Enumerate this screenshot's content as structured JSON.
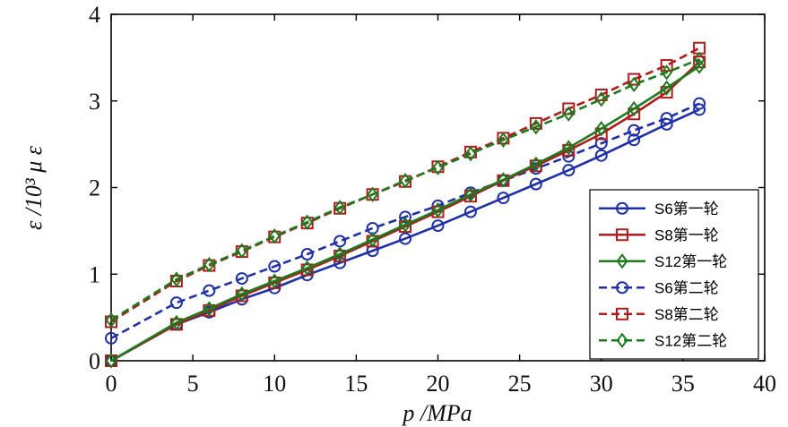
{
  "chart_data": {
    "type": "line",
    "xlabel": "p /MPa",
    "ylabel": "ε /10³ μ ε",
    "xlim": [
      0,
      40
    ],
    "ylim": [
      0,
      4
    ],
    "xticks": [
      "0",
      "5",
      "10",
      "15",
      "20",
      "25",
      "30",
      "35",
      "40"
    ],
    "yticks": [
      "0",
      "1",
      "2",
      "3",
      "4"
    ],
    "grid": false,
    "legend_position": "bottom-right",
    "x": [
      0,
      4,
      6,
      8,
      10,
      12,
      14,
      16,
      18,
      20,
      22,
      24,
      26,
      28,
      30,
      32,
      34,
      36
    ],
    "series": [
      {
        "name": "S6第一轮",
        "color": "#1f2fa8",
        "marker": "circle",
        "line": "solid",
        "values": [
          0,
          0.42,
          0.56,
          0.71,
          0.84,
          0.99,
          1.13,
          1.27,
          1.41,
          1.56,
          1.72,
          1.88,
          2.04,
          2.2,
          2.37,
          2.55,
          2.73,
          2.9
        ]
      },
      {
        "name": "S8第一轮",
        "color": "#b01c1c",
        "marker": "square",
        "line": "solid",
        "values": [
          0,
          0.42,
          0.58,
          0.75,
          0.9,
          1.05,
          1.21,
          1.38,
          1.55,
          1.72,
          1.9,
          2.08,
          2.25,
          2.43,
          2.62,
          2.85,
          3.1,
          3.45
        ]
      },
      {
        "name": "S12第一轮",
        "color": "#1e7a1e",
        "marker": "diamond",
        "line": "solid",
        "values": [
          0,
          0.44,
          0.6,
          0.77,
          0.92,
          1.07,
          1.23,
          1.4,
          1.57,
          1.74,
          1.92,
          2.09,
          2.27,
          2.46,
          2.68,
          2.91,
          3.15,
          3.4
        ]
      },
      {
        "name": "S6第二轮",
        "color": "#1f2fa8",
        "marker": "circle",
        "line": "dashed",
        "values": [
          0.26,
          0.67,
          0.81,
          0.95,
          1.09,
          1.23,
          1.38,
          1.53,
          1.66,
          1.79,
          1.94,
          2.08,
          2.22,
          2.36,
          2.51,
          2.66,
          2.8,
          2.97
        ]
      },
      {
        "name": "S8第二轮",
        "color": "#b01c1c",
        "marker": "square",
        "line": "dashed",
        "values": [
          0.45,
          0.92,
          1.1,
          1.26,
          1.43,
          1.59,
          1.76,
          1.92,
          2.07,
          2.24,
          2.41,
          2.57,
          2.74,
          2.91,
          3.07,
          3.25,
          3.41,
          3.61
        ]
      },
      {
        "name": "S12第二轮",
        "color": "#1e7a1e",
        "marker": "diamond",
        "line": "dashed",
        "values": [
          0.47,
          0.94,
          1.11,
          1.27,
          1.44,
          1.6,
          1.77,
          1.92,
          2.08,
          2.23,
          2.39,
          2.55,
          2.7,
          2.85,
          3.02,
          3.19,
          3.33,
          3.48
        ]
      }
    ]
  }
}
